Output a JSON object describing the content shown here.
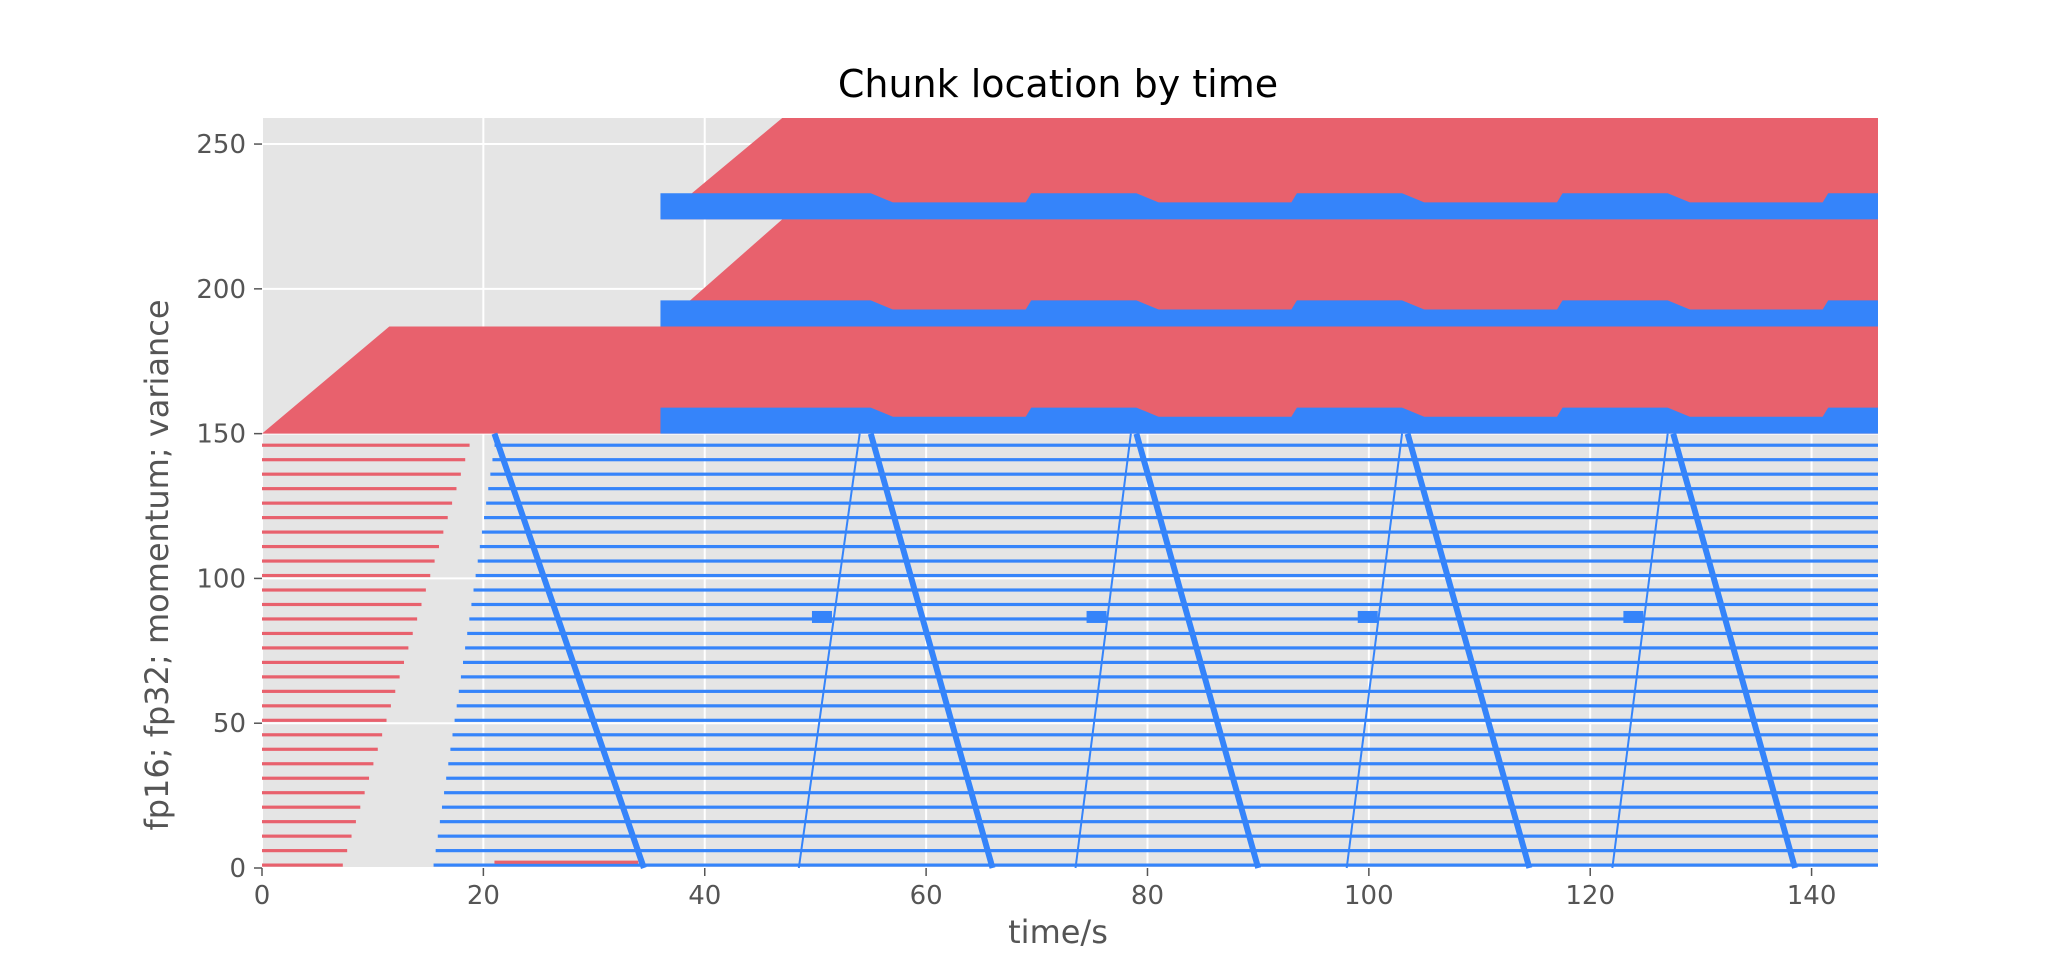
{
  "chart_data": {
    "type": "bar",
    "title": "Chunk location by time",
    "xlabel": "time/s",
    "ylabel": "fp16; fp32; momentum; variance",
    "xlim": [
      0,
      146
    ],
    "ylim": [
      0,
      259
    ],
    "xticks": [
      0,
      20,
      40,
      60,
      80,
      100,
      120,
      140
    ],
    "yticks": [
      0,
      50,
      100,
      150,
      200,
      250
    ],
    "grid": true,
    "colors": {
      "background": "#e5e5e5",
      "grid": "#ffffff",
      "red": "#e8616d",
      "blue": "#3584fa"
    },
    "series": [
      {
        "color": "red",
        "description_of_rows": "rows 0-149 at 5-unit spacing; red segments from 0 to a start time ramping ~0 to ~11.5 s, then to ~21 s"
      },
      {
        "color": "blue",
        "description_of_rows": "rows 0-149; blue segments from ~15-21 s to 146 s with diagonal transfer markers"
      }
    ],
    "blocks": [
      {
        "color": "red",
        "y": [
          150,
          187
        ],
        "x_start_bottom": 0,
        "x_start_top": 11.5,
        "x_end": 146
      },
      {
        "color": "blue",
        "y": [
          150,
          159
        ],
        "x_start": 36,
        "x_end": 146
      },
      {
        "color": "red",
        "y": [
          187,
          224
        ],
        "x_start_bottom": 36,
        "x_start_top": 47,
        "x_end": 146
      },
      {
        "color": "blue",
        "y": [
          187,
          196
        ],
        "x_start": 36,
        "x_end": 146
      },
      {
        "color": "red",
        "y": [
          224,
          259
        ],
        "x_start_bottom": 36,
        "x_start_top": 47,
        "x_end": 146
      },
      {
        "color": "blue",
        "y": [
          224,
          233
        ],
        "x_start": 36,
        "x_end": 146
      }
    ],
    "sweeps": [
      {
        "type": "descending",
        "x_top": 21.0,
        "x_bottom": 34.5
      },
      {
        "type": "ascending",
        "x_bottom": 48.5,
        "x_top": 54.0
      },
      {
        "type": "descending",
        "x_top": 55.0,
        "x_bottom": 66.0
      },
      {
        "type": "ascending",
        "x_bottom": 73.5,
        "x_top": 78.5
      },
      {
        "type": "descending",
        "x_top": 79.0,
        "x_bottom": 90.0
      },
      {
        "type": "ascending",
        "x_bottom": 98.0,
        "x_top": 103.0
      },
      {
        "type": "descending",
        "x_top": 103.5,
        "x_bottom": 114.5
      },
      {
        "type": "ascending",
        "x_bottom": 122.0,
        "x_top": 127.0
      },
      {
        "type": "descending",
        "x_top": 127.5,
        "x_bottom": 138.5
      }
    ]
  }
}
